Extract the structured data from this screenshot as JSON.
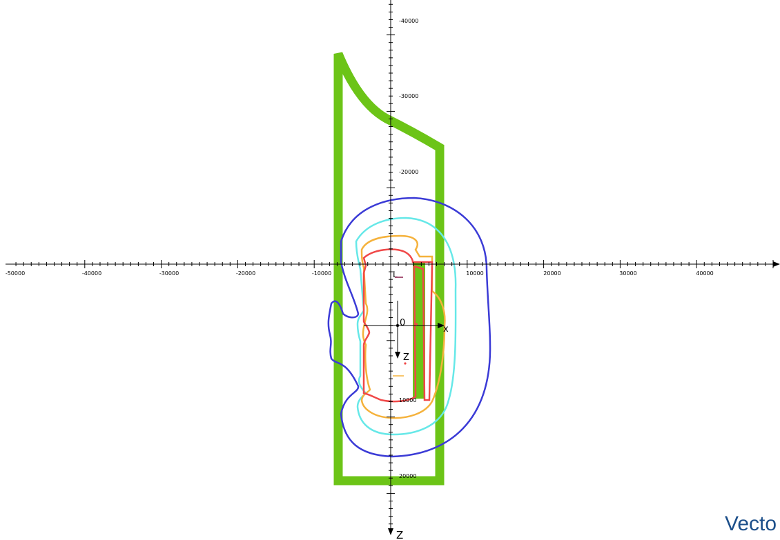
{
  "brand": {
    "text": "Vecto"
  },
  "axes": {
    "horizontal_title": "",
    "vertical_title": "Z",
    "x_tick_labels": [
      "-50000",
      "-40000",
      "-30000",
      "-20000",
      "-10000",
      "10000",
      "20000",
      "30000",
      "40000"
    ],
    "y_tick_labels": [
      "-40000",
      "-30000",
      "-20000",
      "10000",
      "20000"
    ]
  },
  "local_frame": {
    "origin_label": "0",
    "x_label": "x",
    "z_label": "Z",
    "top_label": "L"
  },
  "colors": {
    "structure": "#6cc417",
    "contour_blue": "#3b3bd6",
    "contour_cyan": "#66e8e8",
    "contour_orange": "#f5b23c",
    "contour_red": "#f04848",
    "brand": "#1c4f8a"
  },
  "contours": [
    {
      "name": "contour-blue"
    },
    {
      "name": "contour-cyan"
    },
    {
      "name": "contour-orange"
    },
    {
      "name": "contour-red"
    }
  ]
}
